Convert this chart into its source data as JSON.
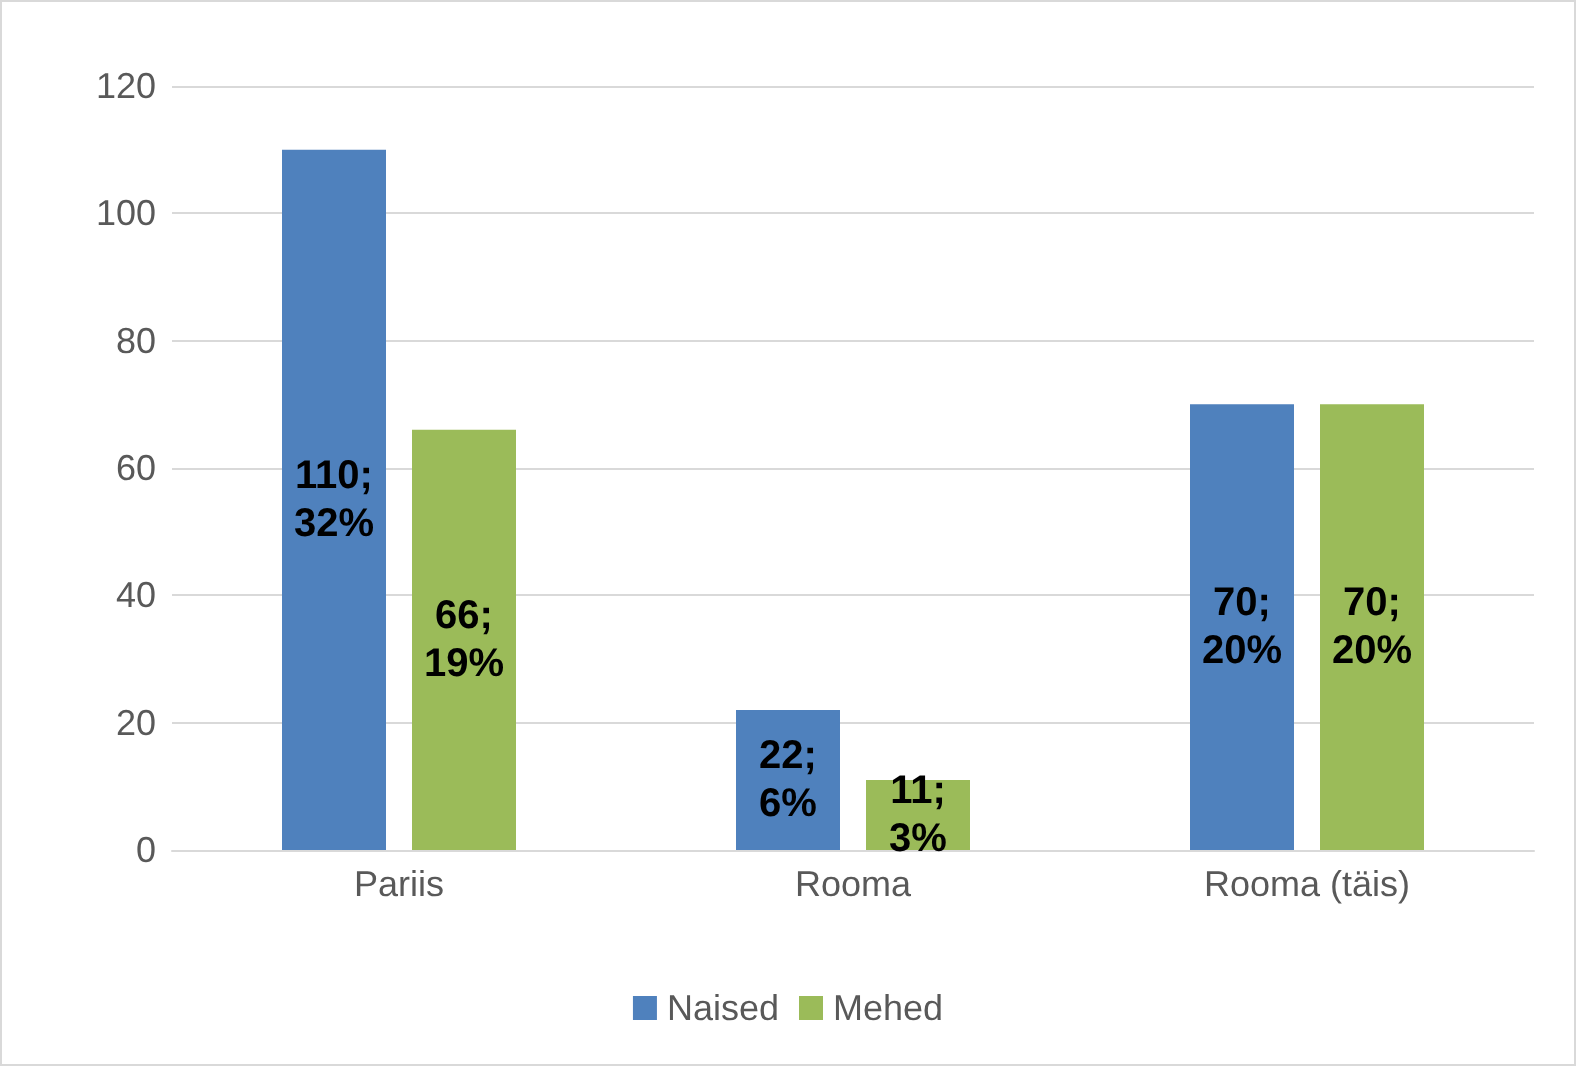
{
  "chart_data": {
    "type": "bar",
    "categories": [
      "Pariis",
      "Rooma",
      "Rooma (täis)"
    ],
    "series": [
      {
        "name": "Naised",
        "color": "#4f81bd",
        "values": [
          110,
          22,
          70
        ],
        "value_labels": [
          "110; 32%",
          "22; 6%",
          "70; 20%"
        ]
      },
      {
        "name": "Mehed",
        "color": "#9bbb59",
        "values": [
          66,
          11,
          70
        ],
        "value_labels": [
          "66; 19%",
          "11; 3%",
          "70; 20%"
        ]
      }
    ],
    "ylim": [
      0,
      120
    ],
    "yticks": [
      0,
      20,
      40,
      60,
      80,
      100,
      120
    ],
    "grid": "y",
    "legend": "bottom"
  }
}
